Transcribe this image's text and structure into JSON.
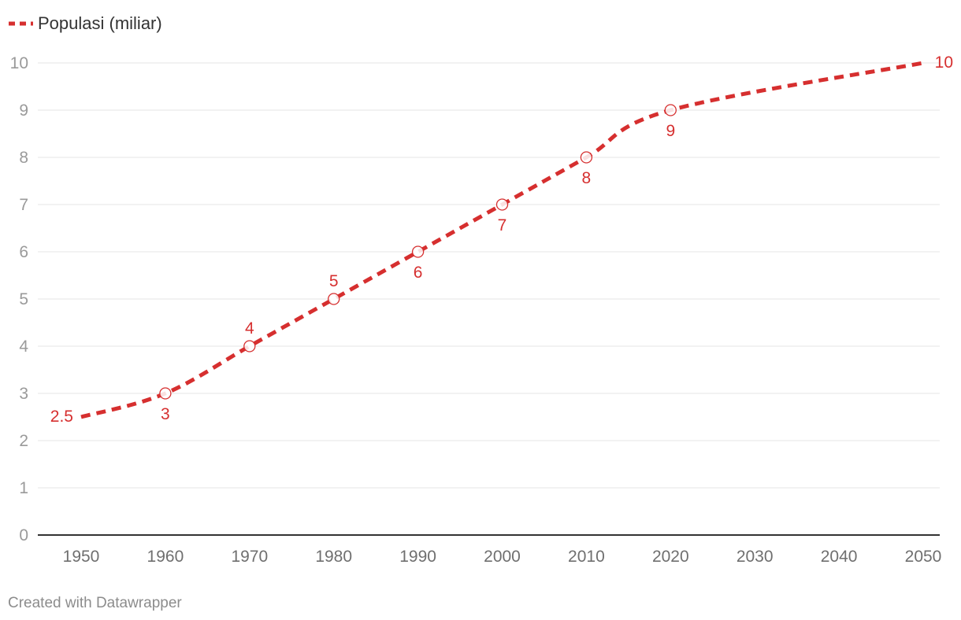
{
  "chart_data": {
    "type": "line",
    "title": "",
    "xlabel": "",
    "ylabel": "",
    "legend_position": "top-left",
    "grid": true,
    "xlim": [
      1950,
      2050
    ],
    "ylim": [
      0,
      10
    ],
    "x_ticks": [
      "1950",
      "1960",
      "1970",
      "1980",
      "1990",
      "2000",
      "2010",
      "2020",
      "2030",
      "2040",
      "2050"
    ],
    "y_ticks": [
      "0",
      "1",
      "2",
      "3",
      "4",
      "5",
      "6",
      "7",
      "8",
      "9",
      "10"
    ],
    "series": [
      {
        "name": "Populasi (miliar)",
        "color": "#d62f2f",
        "line_style": "dashed",
        "x": [
          1950,
          1960,
          1970,
          1980,
          1990,
          2000,
          2010,
          2020,
          2050
        ],
        "values": [
          2.5,
          3,
          4,
          5,
          6,
          7,
          8,
          9,
          10
        ]
      }
    ],
    "markers": [
      {
        "x": 1960,
        "y": 3
      },
      {
        "x": 1970,
        "y": 4
      },
      {
        "x": 1980,
        "y": 5
      },
      {
        "x": 1990,
        "y": 6
      },
      {
        "x": 2000,
        "y": 7
      },
      {
        "x": 2010,
        "y": 8
      },
      {
        "x": 2020,
        "y": 9
      }
    ],
    "data_labels": [
      {
        "x": 1950,
        "y": 2.5,
        "text": "2.5",
        "placement": "left"
      },
      {
        "x": 1960,
        "y": 3,
        "text": "3",
        "placement": "below"
      },
      {
        "x": 1970,
        "y": 4,
        "text": "4",
        "placement": "above"
      },
      {
        "x": 1980,
        "y": 5,
        "text": "5",
        "placement": "above"
      },
      {
        "x": 1990,
        "y": 6,
        "text": "6",
        "placement": "below"
      },
      {
        "x": 2000,
        "y": 7,
        "text": "7",
        "placement": "below"
      },
      {
        "x": 2010,
        "y": 8,
        "text": "8",
        "placement": "below"
      },
      {
        "x": 2020,
        "y": 9,
        "text": "9",
        "placement": "below"
      },
      {
        "x": 2050,
        "y": 10,
        "text": "10",
        "placement": "right"
      }
    ]
  },
  "footer": {
    "credit": "Created with Datawrapper"
  }
}
